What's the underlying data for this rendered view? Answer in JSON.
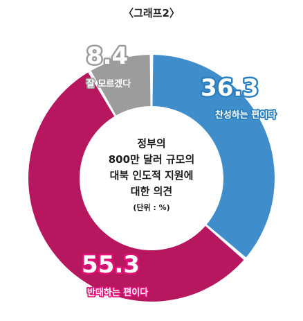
{
  "title": "〈그래프2〉",
  "chart_data": {
    "type": "pie",
    "subtype": "donut",
    "center_lines": [
      "정부의",
      "800만 달러 규모의",
      "대북 인도적 지원에",
      "대한 의견"
    ],
    "unit_label": "(단위 : %)",
    "slices": [
      {
        "label": "찬성하는 편이다",
        "value": 36.3,
        "value_text": "36.3",
        "color": "#3f8ecb"
      },
      {
        "label": "반대하는 편이다",
        "value": 55.3,
        "value_text": "55.3",
        "color": "#b6175f"
      },
      {
        "label": "잘 모르겠다",
        "value": 8.4,
        "value_text": "8.4",
        "color": "#9c9c9c"
      }
    ],
    "label_outline_colors": [
      "#2a7fc0",
      "#e2127a",
      "#9c9c9c"
    ]
  }
}
